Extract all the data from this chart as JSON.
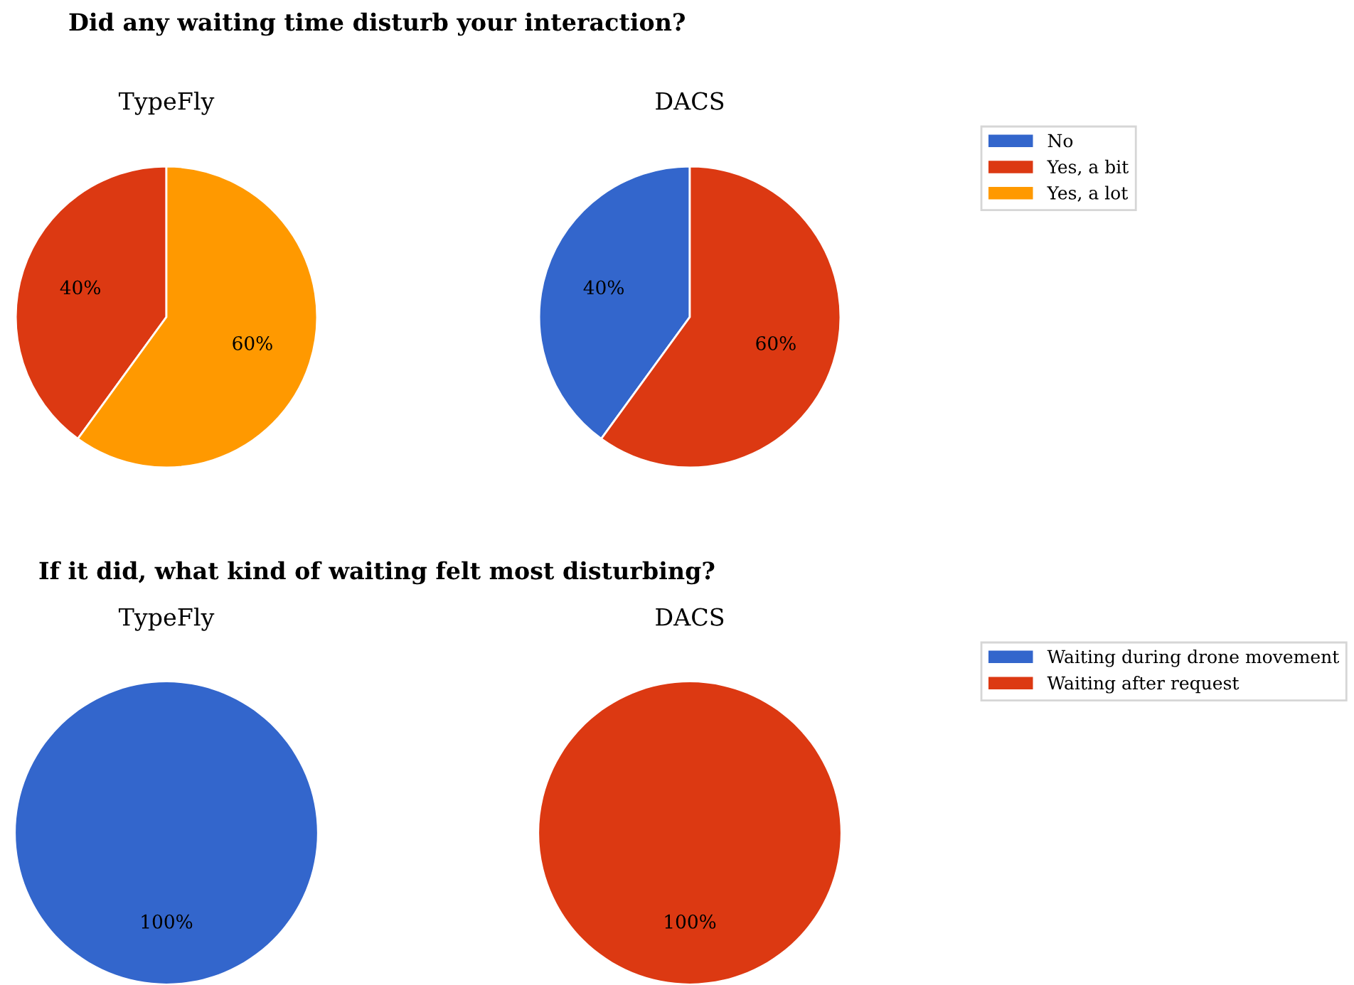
{
  "chart_data": [
    {
      "type": "pie",
      "title": "Did any waiting time disturb your interaction?",
      "subtitle": "TypeFly",
      "categories": [
        "No",
        "Yes, a bit",
        "Yes, a lot"
      ],
      "values": [
        0,
        40,
        60
      ],
      "colors": [
        "#3366cc",
        "#dc3912",
        "#ff9900"
      ],
      "value_labels": [
        null,
        "40%",
        "60%"
      ],
      "legend": "right"
    },
    {
      "type": "pie",
      "subtitle": "DACS",
      "categories": [
        null,
        null,
        null
      ],
      "values": [
        40,
        60,
        0
      ],
      "colors": [
        "#3366cc",
        "#dc3912",
        "#ff9900"
      ],
      "value_labels": [
        "40%",
        "60%",
        null
      ]
    },
    {
      "type": "pie",
      "title": "If it did, what kind of waiting felt most disturbing?",
      "subtitle": "TypeFly",
      "categories": [
        "Waiting during drone movement",
        "Waiting after request"
      ],
      "values": [
        100,
        0
      ],
      "colors": [
        "#3366cc",
        "#dc3912"
      ],
      "value_labels": [
        "100%",
        null
      ],
      "legend": "right"
    },
    {
      "type": "pie",
      "subtitle": "DACS",
      "categories": [
        null,
        null
      ],
      "values": [
        0,
        100
      ],
      "colors": [
        "#3366cc",
        "#dc3912"
      ],
      "value_labels": [
        null,
        "100%"
      ]
    }
  ]
}
